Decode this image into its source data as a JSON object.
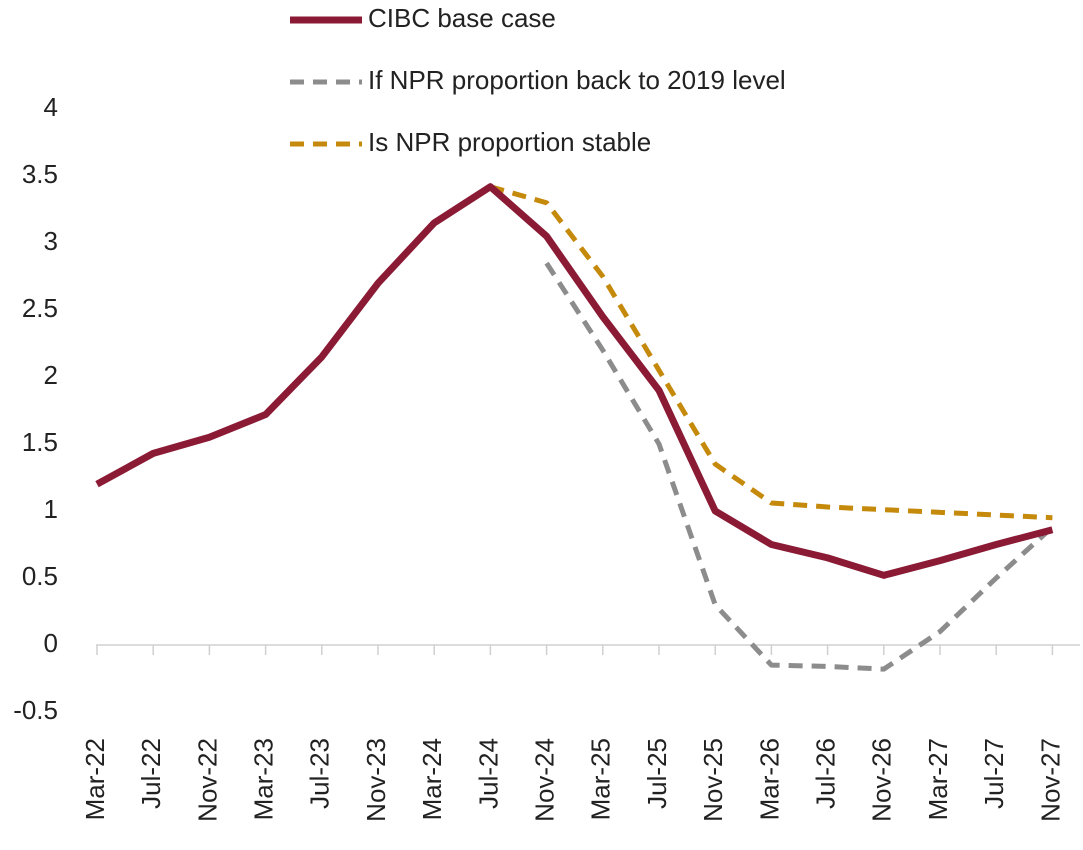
{
  "chart_data": {
    "type": "line",
    "categories": [
      "Mar-22",
      "Jul-22",
      "Nov-22",
      "Mar-23",
      "Jul-23",
      "Nov-23",
      "Mar-24",
      "Jul-24",
      "Nov-24",
      "Mar-25",
      "Jul-25",
      "Nov-25",
      "Mar-26",
      "Jul-26",
      "Nov-26",
      "Mar-27",
      "Jul-27",
      "Nov-27"
    ],
    "series": [
      {
        "name": "CIBC base case",
        "color": "#8b1a35",
        "line_style": "solid",
        "values": [
          1.2,
          1.43,
          1.55,
          1.72,
          2.15,
          2.7,
          3.15,
          3.42,
          3.05,
          2.45,
          1.9,
          1.0,
          0.75,
          0.65,
          0.52,
          0.63,
          0.75,
          0.86
        ]
      },
      {
        "name": "If NPR proportion back to 2019 level",
        "color": "#8c8c8c",
        "line_style": "dashed",
        "values": [
          null,
          null,
          null,
          null,
          null,
          null,
          null,
          null,
          2.85,
          2.2,
          1.5,
          0.3,
          -0.15,
          -0.16,
          -0.18,
          0.1,
          0.5,
          0.88
        ]
      },
      {
        "name": "Is NPR proportion stable",
        "color": "#c58a0b",
        "line_style": "dashed",
        "values": [
          null,
          null,
          null,
          null,
          null,
          null,
          null,
          3.42,
          3.3,
          2.75,
          2.05,
          1.35,
          1.06,
          1.03,
          1.01,
          0.99,
          0.97,
          0.95
        ]
      }
    ],
    "ylim": [
      -0.5,
      4
    ],
    "yticks": [
      -0.5,
      0,
      0.5,
      1,
      1.5,
      2,
      2.5,
      3,
      3.5,
      4
    ],
    "grid": false
  }
}
